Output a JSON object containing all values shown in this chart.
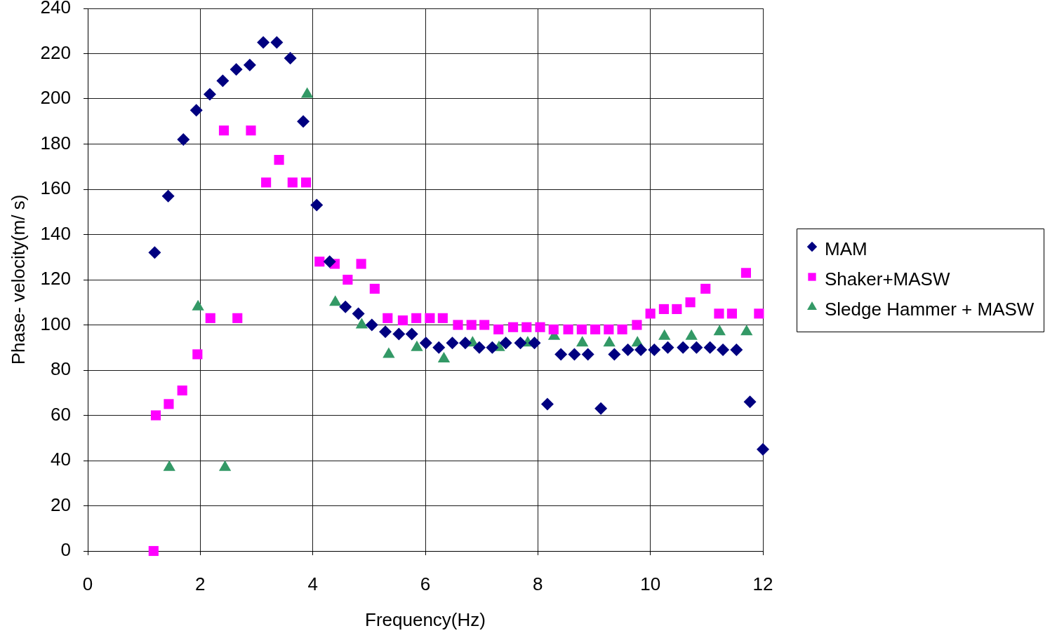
{
  "chart_data": {
    "type": "scatter",
    "xlabel": "Frequency(Hz)",
    "ylabel": "Phase- velocity(m/ s)",
    "xlim": [
      0,
      12
    ],
    "xticks": [
      0,
      2,
      4,
      6,
      8,
      10,
      12
    ],
    "ylim": [
      0,
      240
    ],
    "yticks": [
      0,
      20,
      40,
      60,
      80,
      100,
      120,
      140,
      160,
      180,
      200,
      220,
      240
    ],
    "grid": true,
    "legend": "right",
    "series": [
      {
        "name": "MAM",
        "color": "#000080",
        "marker": "diamond",
        "x": [
          1.19,
          1.43,
          1.7,
          1.93,
          2.17,
          2.4,
          2.64,
          2.88,
          3.12,
          3.36,
          3.6,
          3.83,
          4.07,
          4.3,
          4.58,
          4.81,
          5.05,
          5.29,
          5.53,
          5.76,
          6.01,
          6.24,
          6.48,
          6.71,
          6.96,
          7.19,
          7.43,
          7.69,
          7.94,
          8.17,
          8.41,
          8.65,
          8.89,
          9.12,
          9.36,
          9.6,
          9.83,
          10.07,
          10.31,
          10.58,
          10.82,
          11.06,
          11.29,
          11.53,
          11.77,
          12.0
        ],
        "values": [
          132,
          157,
          182,
          195,
          202,
          208,
          213,
          215,
          225,
          225,
          218,
          190,
          153,
          128,
          108,
          105,
          100,
          97,
          96,
          96,
          92,
          90,
          92,
          92,
          90,
          90,
          92,
          92,
          92,
          65,
          87,
          87,
          87,
          63,
          87,
          89,
          89,
          89,
          90,
          90,
          90,
          90,
          89,
          89,
          66,
          45
        ]
      },
      {
        "name": "Shaker+MASW",
        "color": "#ff00ff",
        "marker": "square",
        "x": [
          1.17,
          1.21,
          1.44,
          1.68,
          1.95,
          2.18,
          2.42,
          2.66,
          2.9,
          3.17,
          3.4,
          3.64,
          3.88,
          4.12,
          4.39,
          4.62,
          4.86,
          5.1,
          5.33,
          5.6,
          5.84,
          6.08,
          6.31,
          6.58,
          6.82,
          7.05,
          7.3,
          7.56,
          7.8,
          8.04,
          8.28,
          8.54,
          8.78,
          9.02,
          9.26,
          9.5,
          9.76,
          10.0,
          10.24,
          10.47,
          10.71,
          10.98,
          11.22,
          11.45,
          11.7,
          11.93
        ],
        "values": [
          0,
          60,
          65,
          71,
          87,
          103,
          186,
          103,
          186,
          163,
          173,
          163,
          163,
          128,
          127,
          120,
          127,
          116,
          103,
          102,
          103,
          103,
          103,
          100,
          100,
          100,
          98,
          99,
          99,
          99,
          98,
          98,
          98,
          98,
          98,
          98,
          100,
          105,
          107,
          107,
          110,
          116,
          105,
          105,
          123,
          105
        ]
      },
      {
        "name": "Sledge Hammer + MASW",
        "color": "#339966",
        "marker": "triangle",
        "x": [
          1.45,
          1.96,
          2.44,
          3.9,
          4.4,
          4.87,
          5.35,
          5.85,
          6.33,
          6.84,
          7.31,
          7.82,
          8.29,
          8.79,
          9.27,
          9.77,
          10.25,
          10.73,
          11.23,
          11.71
        ],
        "values": [
          37,
          108,
          37,
          202,
          110,
          100,
          87,
          90,
          85,
          92,
          90,
          92,
          95,
          92,
          92,
          92,
          95,
          95,
          97,
          97
        ]
      }
    ]
  }
}
